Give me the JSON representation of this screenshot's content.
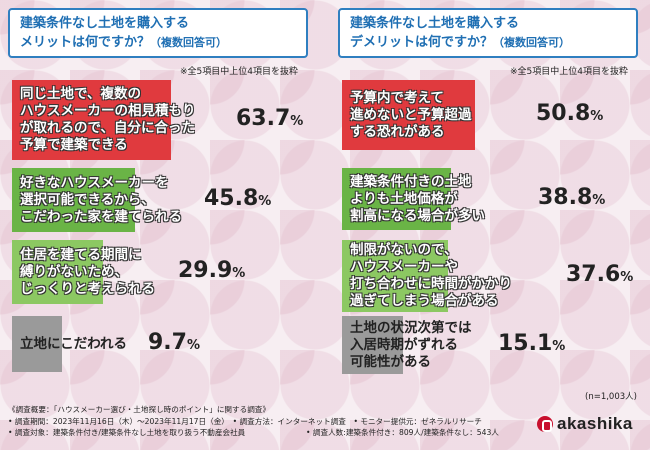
{
  "chart_data": [
    {
      "type": "bar",
      "orientation": "horizontal",
      "title": "建築条件なし土地を購入する\nメリットは何ですか？",
      "title_suffix": "（複数回答可）",
      "note": "※全5項目中上位4項目を抜粋",
      "unit": "%",
      "categories": [
        "同じ土地で、複数の\nハウスメーカーの相見積もり\nが取れるので、自分に合った\n予算で建築できる",
        "好きなハウスメーカーを\n選択可能できるから、\nこだわった家を建てられる",
        "住居を建てる期間に\n縛りがないため、\nじっくりと考えられる",
        "立地にこだわれる"
      ],
      "values": [
        63.7,
        45.8,
        29.9,
        9.7
      ],
      "colors": [
        "#e03a3e",
        "#6ab446",
        "#8cc862",
        "#9a9a9a"
      ],
      "xlim": [
        0,
        100
      ]
    },
    {
      "type": "bar",
      "orientation": "horizontal",
      "title": "建築条件なし土地を購入する\nデメリットは何ですか？",
      "title_suffix": "（複数回答可）",
      "note": "※全5項目中上位4項目を抜粋",
      "unit": "%",
      "categories": [
        "予算内で考えて\n進めないと予算超過\nする恐れがある",
        "建築条件付きの土地\nよりも土地価格が\n割高になる場合が多い",
        "制限がないので、\nハウスメーカーや\n打ち合わせに時間がかかり\n過ぎてしまう場合がある",
        "土地の状況次第では\n入居時期がずれる\n可能性がある"
      ],
      "values": [
        50.8,
        38.8,
        37.6,
        15.1
      ],
      "colors": [
        "#e03a3e",
        "#6ab446",
        "#8cc862",
        "#9a9a9a"
      ],
      "xlim": [
        0,
        100
      ]
    }
  ],
  "sample": "(n=1,003人)",
  "footer": [
    "《調査概要：「ハウスメーカー選び・土地探し時のポイント」に関する調査》",
    "• 調査期間：2023年11月16日（木）～2023年11月17日（金）　• 調査方法：インターネット調査　• モニター提供元：ゼネラルリサーチ",
    "• 調査対象：建築条件付き/建築条件なし土地を取り扱う不動産会社員　　　　　　　　• 調査人数:建築条件付き：809人/建築条件なし：543人"
  ],
  "brand": "akashika"
}
